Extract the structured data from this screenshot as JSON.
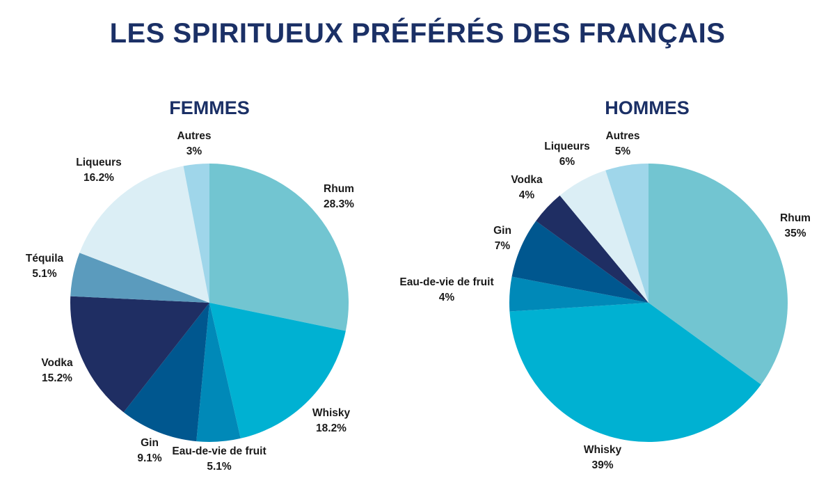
{
  "title": "LES SPIRITUEUX PRÉFÉRÉS DES FRANÇAIS",
  "colors": {
    "Rhum": "#72c5d1",
    "Whisky": "#00b1d2",
    "Eau-de-vie de fruit": "#0089b8",
    "Gin": "#00578f",
    "Vodka": "#1f2e63",
    "Téquila": "#5b9bbd",
    "Liqueurs": "#dbeef5",
    "Autres": "#9fd6ea"
  },
  "chart_data": [
    {
      "type": "pie",
      "title": "FEMMES",
      "slices": [
        {
          "label": "Rhum",
          "value": 28.3,
          "value_label": "28.3%"
        },
        {
          "label": "Whisky",
          "value": 18.2,
          "value_label": "18.2%"
        },
        {
          "label": "Eau-de-vie de fruit",
          "value": 5.1,
          "value_label": "5.1%"
        },
        {
          "label": "Gin",
          "value": 9.1,
          "value_label": "9.1%"
        },
        {
          "label": "Vodka",
          "value": 15.2,
          "value_label": "15.2%"
        },
        {
          "label": "Téquila",
          "value": 5.1,
          "value_label": "5.1%"
        },
        {
          "label": "Liqueurs",
          "value": 16.2,
          "value_label": "16.2%"
        },
        {
          "label": "Autres",
          "value": 3,
          "value_label": "3%"
        }
      ]
    },
    {
      "type": "pie",
      "title": "HOMMES",
      "slices": [
        {
          "label": "Rhum",
          "value": 35,
          "value_label": "35%"
        },
        {
          "label": "Whisky",
          "value": 39,
          "value_label": "39%"
        },
        {
          "label": "Eau-de-vie de fruit",
          "value": 4,
          "value_label": "4%"
        },
        {
          "label": "Gin",
          "value": 7,
          "value_label": "7%"
        },
        {
          "label": "Vodka",
          "value": 4,
          "value_label": "4%"
        },
        {
          "label": "Liqueurs",
          "value": 6,
          "value_label": "6%"
        },
        {
          "label": "Autres",
          "value": 5,
          "value_label": "5%"
        }
      ]
    }
  ]
}
